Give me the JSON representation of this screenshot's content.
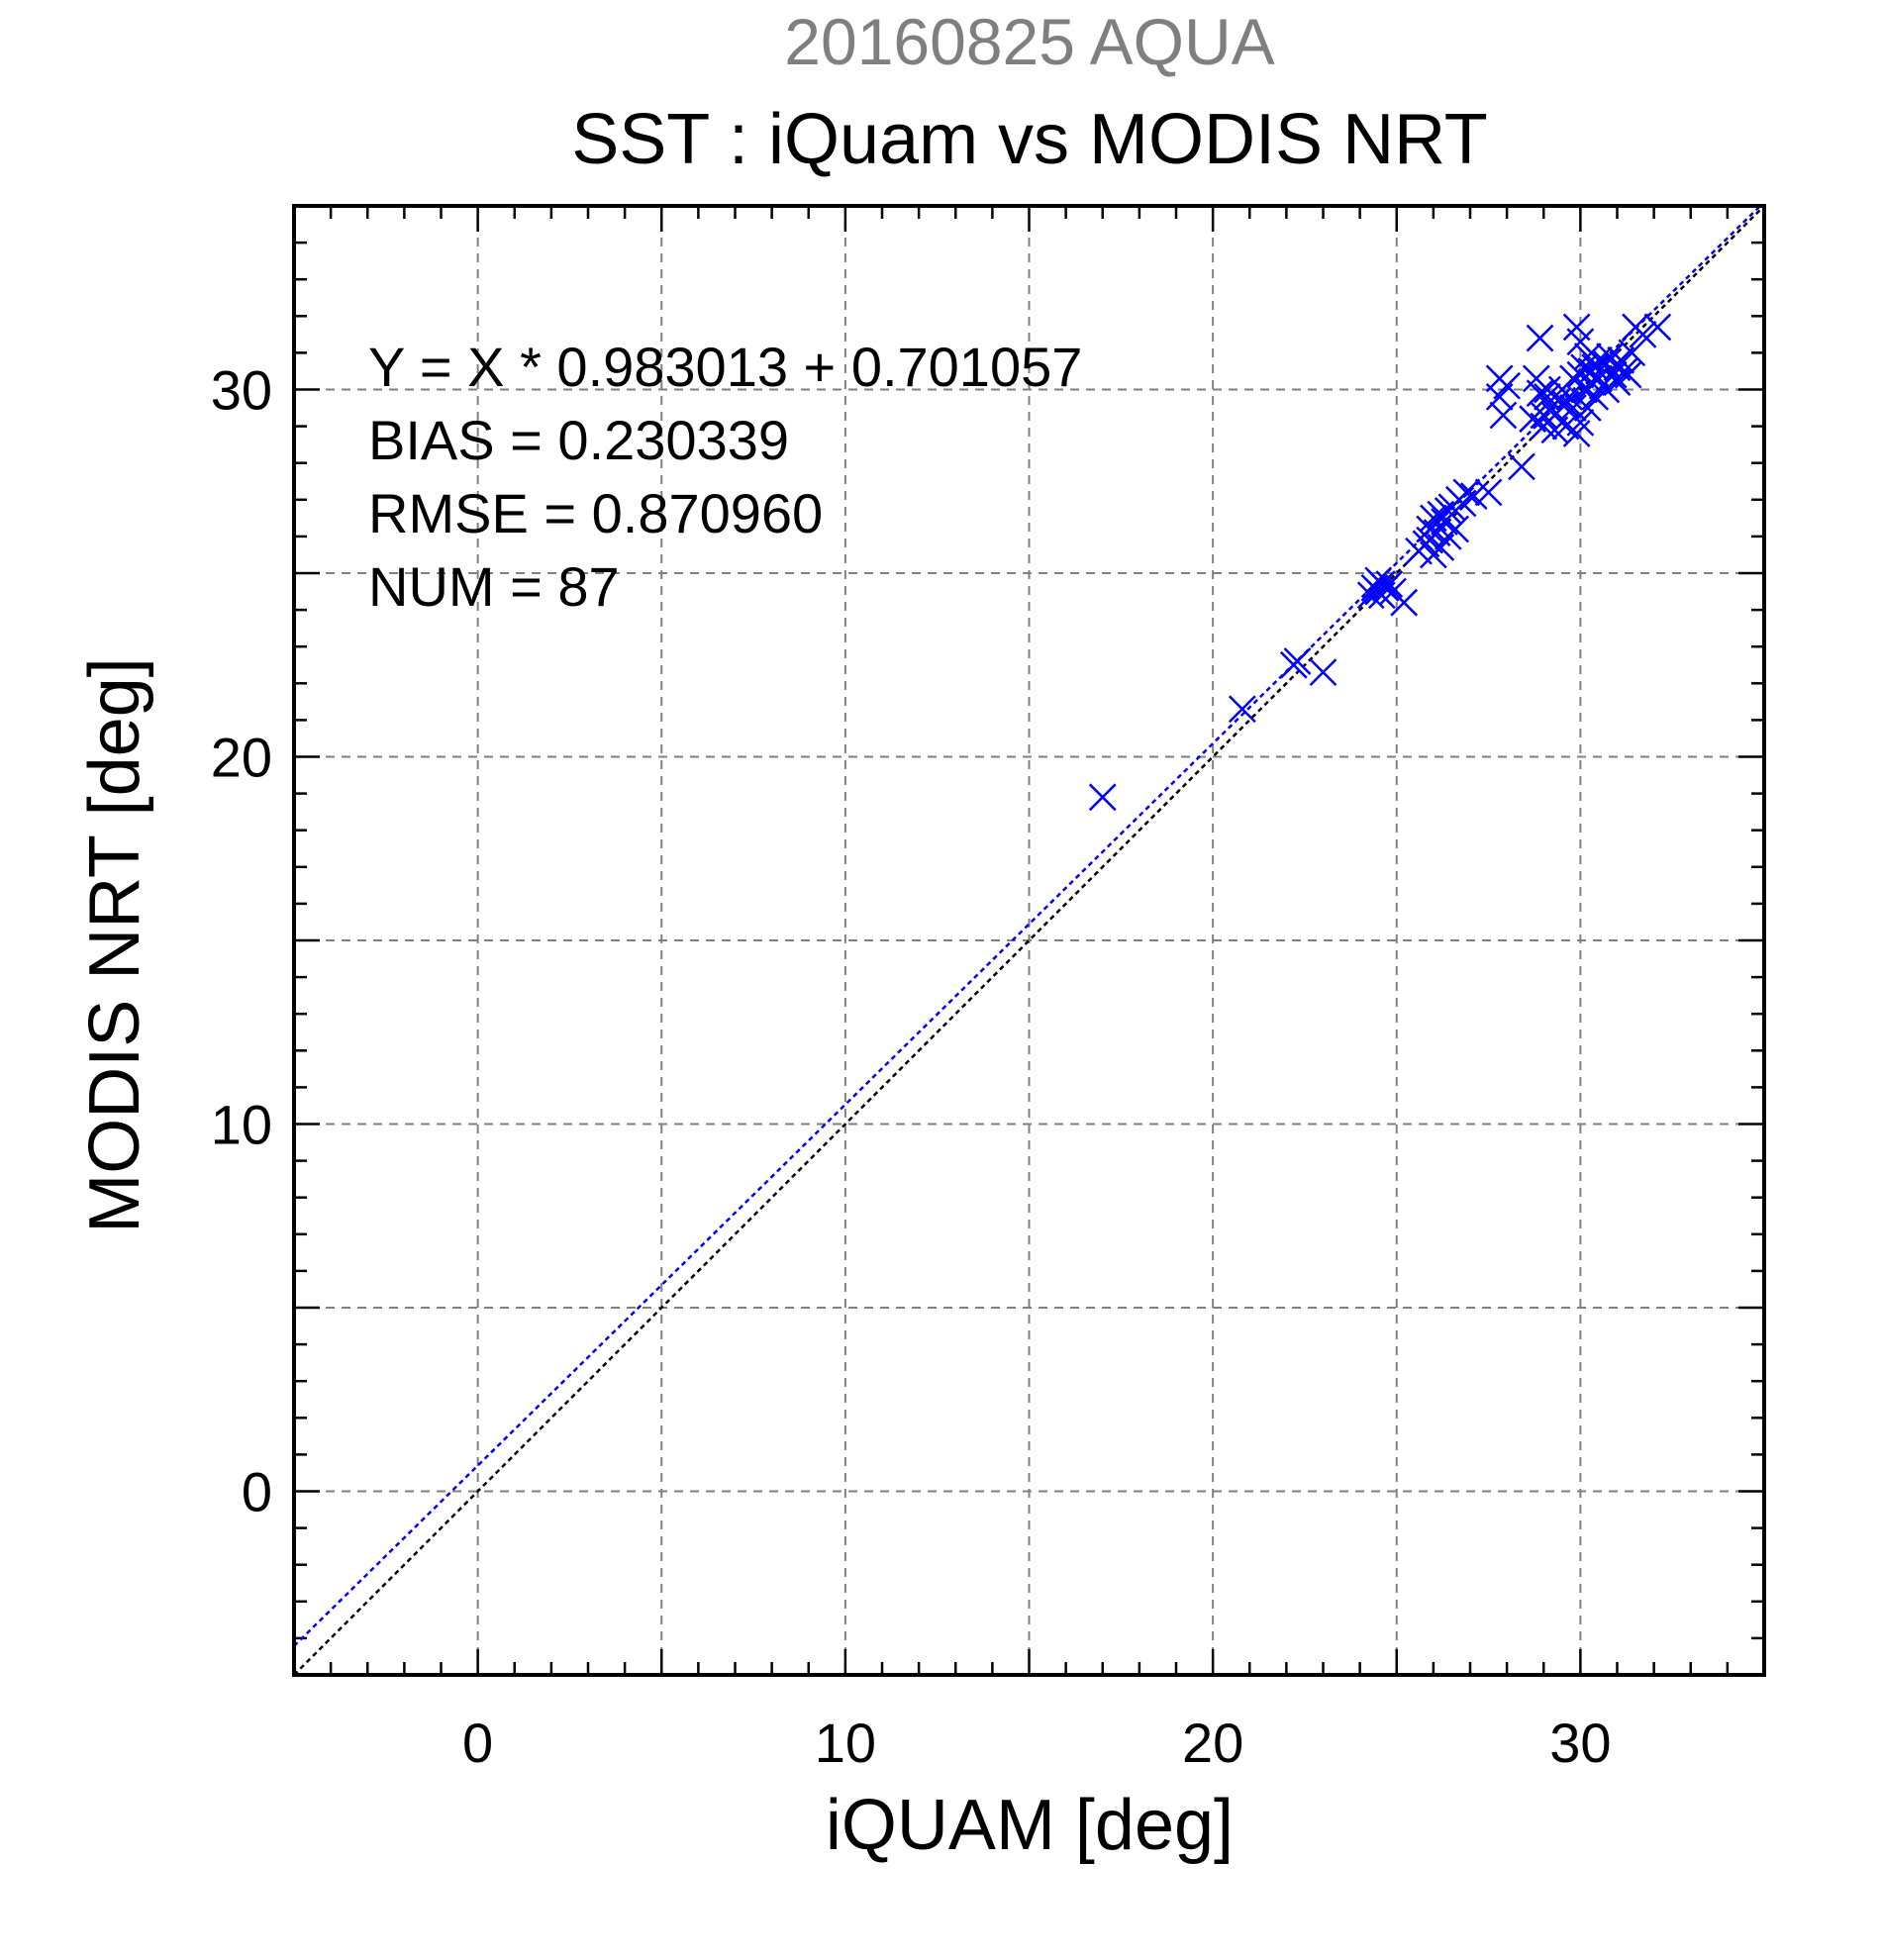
{
  "header": {
    "suptitle": "20160825 AQUA",
    "title": "SST : iQuam vs MODIS NRT"
  },
  "stats": {
    "line1": "Y = X * 0.983013 + 0.701057",
    "line2": "BIAS = 0.230339",
    "line3": "RMSE = 0.870960",
    "line4": "NUM = 87"
  },
  "colors": {
    "points": "#0000ff",
    "fit_line": "#0000ff",
    "identity_line": "#000000",
    "grid": "#808080",
    "suptitle": "#7f7f7f"
  },
  "chart_data": {
    "type": "scatter",
    "title": "SST : iQuam vs MODIS NRT",
    "xlabel": "iQUAM [deg]",
    "ylabel": "MODIS NRT [deg]",
    "xlim": [
      -5,
      35
    ],
    "ylim": [
      -5,
      35
    ],
    "xticks": [
      0,
      10,
      20,
      30
    ],
    "yticks": [
      0,
      10,
      20,
      30
    ],
    "grid": true,
    "marker": "x",
    "fit": {
      "slope": 0.983013,
      "intercept": 0.701057
    },
    "identity_line": true,
    "points": [
      [
        17.0,
        18.9
      ],
      [
        20.8,
        21.3
      ],
      [
        22.2,
        22.5
      ],
      [
        22.3,
        22.6
      ],
      [
        23.0,
        22.3
      ],
      [
        24.4,
        24.6
      ],
      [
        24.5,
        24.8
      ],
      [
        24.5,
        24.5
      ],
      [
        24.6,
        24.7
      ],
      [
        24.6,
        24.4
      ],
      [
        24.7,
        24.6
      ],
      [
        24.8,
        24.7
      ],
      [
        24.9,
        24.5
      ],
      [
        25.2,
        24.2
      ],
      [
        25.8,
        25.8
      ],
      [
        25.9,
        26.2
      ],
      [
        26.0,
        25.5
      ],
      [
        26.0,
        26.5
      ],
      [
        26.1,
        26.1
      ],
      [
        26.2,
        26.6
      ],
      [
        26.2,
        25.7
      ],
      [
        26.3,
        26.4
      ],
      [
        26.4,
        26.0
      ],
      [
        26.5,
        26.8
      ],
      [
        26.6,
        26.2
      ],
      [
        26.7,
        27.0
      ],
      [
        26.9,
        27.2
      ],
      [
        27.1,
        27.1
      ],
      [
        27.8,
        30.3
      ],
      [
        27.8,
        29.8
      ],
      [
        27.9,
        29.3
      ],
      [
        28.0,
        30.1
      ],
      [
        28.4,
        27.9
      ],
      [
        28.8,
        30.3
      ],
      [
        28.9,
        29.9
      ],
      [
        28.9,
        31.4
      ],
      [
        29.0,
        29.3
      ],
      [
        29.0,
        29.0
      ],
      [
        29.1,
        29.8
      ],
      [
        29.1,
        30.0
      ],
      [
        29.2,
        29.5
      ],
      [
        29.3,
        29.3
      ],
      [
        29.3,
        28.9
      ],
      [
        29.4,
        29.7
      ],
      [
        29.5,
        30.0
      ],
      [
        29.6,
        29.0
      ],
      [
        29.7,
        29.8
      ],
      [
        29.8,
        29.5
      ],
      [
        29.8,
        30.3
      ],
      [
        29.9,
        31.7
      ],
      [
        29.9,
        28.8
      ],
      [
        30.0,
        31.3
      ],
      [
        30.0,
        30.4
      ],
      [
        30.0,
        29.1
      ],
      [
        30.1,
        30.0
      ],
      [
        30.1,
        30.6
      ],
      [
        30.2,
        29.5
      ],
      [
        30.2,
        30.9
      ],
      [
        30.3,
        30.2
      ],
      [
        30.3,
        30.5
      ],
      [
        30.4,
        29.8
      ],
      [
        30.4,
        30.6
      ],
      [
        30.5,
        30.3
      ],
      [
        30.6,
        30.1
      ],
      [
        30.7,
        30.0
      ],
      [
        30.7,
        30.7
      ],
      [
        30.8,
        30.9
      ],
      [
        30.9,
        30.4
      ],
      [
        31.0,
        30.6
      ],
      [
        31.0,
        30.2
      ],
      [
        31.1,
        30.8
      ],
      [
        31.2,
        30.5
      ],
      [
        31.3,
        30.4
      ],
      [
        31.5,
        31.7
      ],
      [
        31.7,
        31.5
      ],
      [
        32.1,
        31.7
      ],
      [
        27.5,
        27.2
      ],
      [
        26.8,
        26.9
      ],
      [
        25.6,
        25.6
      ],
      [
        24.3,
        24.4
      ],
      [
        30.5,
        30.8
      ],
      [
        29.6,
        29.6
      ],
      [
        28.7,
        29.2
      ],
      [
        31.4,
        31.0
      ],
      [
        26.4,
        26.7
      ],
      [
        25.9,
        25.9
      ],
      [
        30.2,
        30.0
      ]
    ]
  }
}
